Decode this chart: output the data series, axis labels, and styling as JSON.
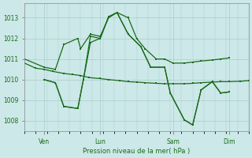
{
  "background_color": "#cce8e8",
  "grid_color": "#aacccc",
  "line_color": "#1a6b1a",
  "xlabel_text": "Pression niveau de la mer( hPa )",
  "ylim": [
    1007.5,
    1013.7
  ],
  "yticks": [
    1008,
    1009,
    1010,
    1011,
    1012,
    1013
  ],
  "xlim": [
    0,
    8.0
  ],
  "xtick_positions": [
    0.7,
    2.7,
    5.3,
    7.3
  ],
  "xtick_labels": [
    "Ven",
    "Lun",
    "Sam",
    "Dim"
  ],
  "series1_x": [
    0.0,
    0.4,
    0.7,
    1.0,
    1.4,
    1.7,
    2.0,
    2.3,
    2.7,
    3.0,
    3.4,
    3.7,
    4.0,
    4.3,
    4.7,
    5.0,
    5.3,
    5.7,
    6.0,
    6.3,
    6.7,
    7.0,
    7.3,
    7.7,
    8.0
  ],
  "series1_y": [
    1010.8,
    1010.55,
    1010.5,
    1010.4,
    1010.3,
    1010.25,
    1010.2,
    1010.1,
    1010.05,
    1010.0,
    1009.95,
    1009.9,
    1009.88,
    1009.85,
    1009.82,
    1009.8,
    1009.8,
    1009.8,
    1009.82,
    1009.85,
    1009.88,
    1009.9,
    1009.9,
    1009.92,
    1009.95
  ],
  "series2_x": [
    0.0,
    0.7,
    1.1,
    1.4,
    1.9,
    2.0,
    2.35,
    2.7,
    3.0,
    3.3,
    3.7,
    4.0,
    4.3,
    4.7,
    5.0,
    5.3,
    5.7,
    6.0,
    6.3,
    6.7,
    7.0,
    7.3
  ],
  "series2_y": [
    1011.0,
    1010.6,
    1010.5,
    1011.7,
    1012.0,
    1011.5,
    1012.2,
    1012.1,
    1013.0,
    1013.25,
    1013.0,
    1012.0,
    1011.5,
    1011.0,
    1011.0,
    1010.8,
    1010.8,
    1010.85,
    1010.9,
    1010.95,
    1011.0,
    1011.05
  ],
  "series3_x": [
    0.7,
    1.1,
    1.4,
    1.9,
    2.1,
    2.35,
    2.7,
    3.0,
    3.3,
    3.7,
    4.15,
    4.5,
    5.0,
    5.2,
    5.7,
    6.0,
    6.3,
    6.7,
    7.0,
    7.3
  ],
  "series3_y": [
    1010.0,
    1009.85,
    1008.7,
    1008.6,
    1010.0,
    1011.8,
    1012.0,
    1013.05,
    1013.25,
    1012.2,
    1011.6,
    1010.6,
    1010.6,
    1009.35,
    1008.05,
    1007.8,
    1009.5,
    1009.9,
    1009.35,
    1009.4
  ],
  "series4_x": [
    0.7,
    1.1,
    1.4,
    1.9,
    2.1,
    2.35,
    2.7,
    3.0,
    3.3,
    3.7,
    4.15,
    4.5,
    5.0,
    5.2,
    5.7,
    6.0,
    6.3,
    6.7,
    7.0,
    7.3
  ],
  "series4_y": [
    1010.0,
    1009.85,
    1008.7,
    1008.6,
    1010.0,
    1012.1,
    1012.0,
    1013.05,
    1013.25,
    1012.2,
    1011.6,
    1010.6,
    1010.6,
    1009.35,
    1008.05,
    1007.8,
    1009.5,
    1009.9,
    1009.35,
    1009.4
  ]
}
